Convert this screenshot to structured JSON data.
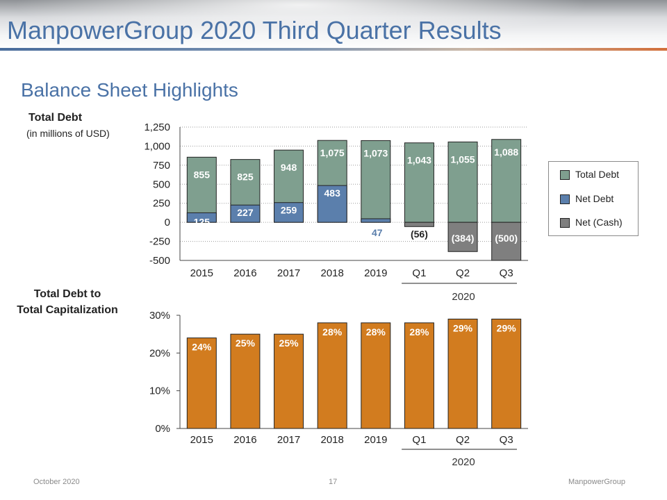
{
  "header": {
    "title": "ManpowerGroup 2020 Third Quarter Results"
  },
  "slide": {
    "subtitle": "Balance Sheet Highlights"
  },
  "colors": {
    "total_debt": "#7f9f8f",
    "net_debt": "#5b7fac",
    "net_cash": "#7f7f7f",
    "capitalization": "#d27c1f",
    "title_blue": "#4a72a6"
  },
  "chart_data": [
    {
      "type": "bar",
      "label": "Total Debt",
      "sublabel": "(in millions of USD)",
      "categories": [
        "2015",
        "2016",
        "2017",
        "2018",
        "2019",
        "Q1",
        "Q2",
        "Q3"
      ],
      "group_label": "2020",
      "series": [
        {
          "name": "Total Debt",
          "values": [
            855,
            825,
            948,
            1075,
            1073,
            1043,
            1055,
            1088
          ],
          "labels": [
            "855",
            "825",
            "948",
            "1,075",
            "1,073",
            "1,043",
            "1,055",
            "1,088"
          ]
        },
        {
          "name": "Net Debt",
          "values": [
            125,
            227,
            259,
            483,
            47,
            null,
            null,
            null
          ],
          "labels": [
            "125",
            "227",
            "259",
            "483",
            "47",
            "",
            "",
            ""
          ]
        },
        {
          "name": "Net (Cash)",
          "values": [
            null,
            null,
            null,
            null,
            null,
            -56,
            -384,
            -500
          ],
          "labels": [
            "",
            "",
            "",
            "",
            "",
            "(56)",
            "(384)",
            "(500)"
          ]
        }
      ],
      "ylim": [
        -500,
        1250
      ],
      "yticks": [
        1250,
        1000,
        750,
        500,
        250,
        0,
        -250,
        -500
      ],
      "ytick_labels": [
        "1,250",
        "1,000",
        "750",
        "500",
        "250",
        "0",
        "-250",
        "-500"
      ],
      "grid": true,
      "legend": "right"
    },
    {
      "type": "bar",
      "label_line1": "Total Debt to",
      "label_line2": "Total Capitalization",
      "categories": [
        "2015",
        "2016",
        "2017",
        "2018",
        "2019",
        "Q1",
        "Q2",
        "Q3"
      ],
      "group_label": "2020",
      "values": [
        24,
        25,
        25,
        28,
        28,
        28,
        29,
        29
      ],
      "labels": [
        "24%",
        "25%",
        "25%",
        "28%",
        "28%",
        "28%",
        "29%",
        "29%"
      ],
      "ylim": [
        0,
        30
      ],
      "yticks": [
        30,
        20,
        10,
        0
      ],
      "ytick_labels": [
        "30%",
        "20%",
        "10%",
        "0%"
      ],
      "grid": false
    }
  ],
  "footer": {
    "date": "October 2020",
    "page": "17",
    "brand": "ManpowerGroup"
  }
}
